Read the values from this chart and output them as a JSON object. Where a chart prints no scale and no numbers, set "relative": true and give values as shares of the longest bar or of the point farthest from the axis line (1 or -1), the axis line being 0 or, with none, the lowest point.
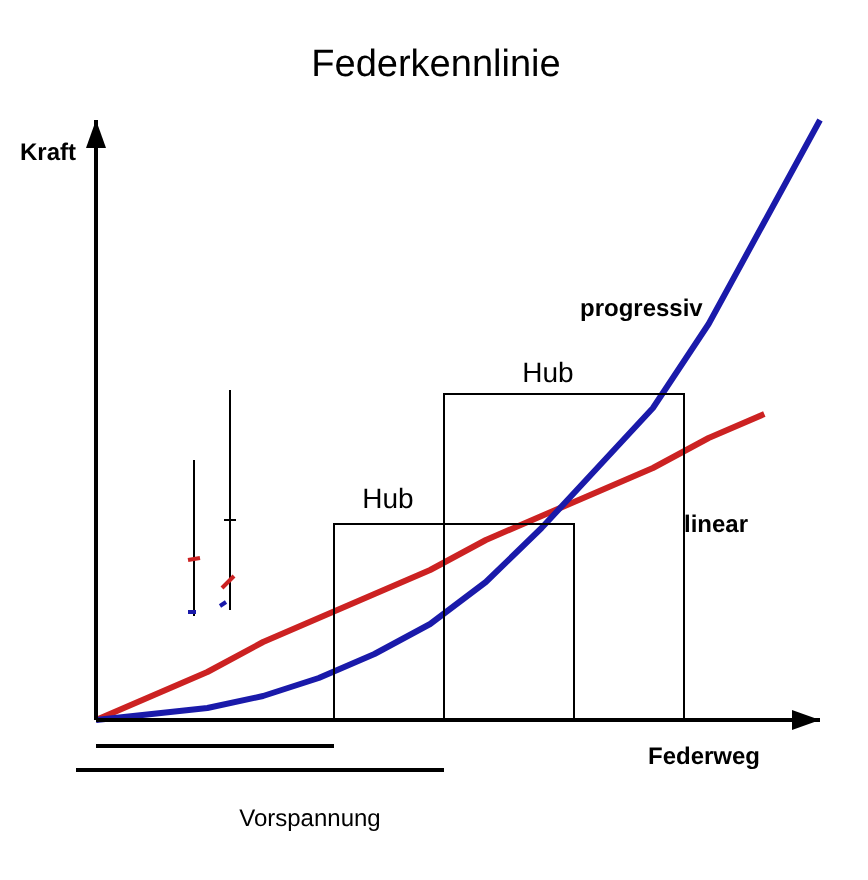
{
  "chart_data": {
    "type": "line",
    "title": "Federkennlinie",
    "xlabel": "Federweg",
    "ylabel": "Kraft",
    "relative": true,
    "legend": false,
    "marker": "none",
    "line_style": "solid",
    "grid": false,
    "categories": [
      null,
      null,
      null,
      null,
      null,
      null,
      null,
      null,
      null,
      null,
      null,
      null,
      null,
      null
    ],
    "series": [
      {
        "name": "linear",
        "color": "#cc2222",
        "values": [
          0,
          0.04,
          0.08,
          0.13,
          0.17,
          0.21,
          0.25,
          0.3,
          0.34,
          0.38,
          0.42,
          0.47,
          0.51,
          null
        ]
      },
      {
        "name": "progressiv",
        "color": "#1a1aaa",
        "values": [
          0,
          0.01,
          0.02,
          0.04,
          0.07,
          0.11,
          0.16,
          0.23,
          0.32,
          0.42,
          0.52,
          0.66,
          0.83,
          1
        ]
      }
    ],
    "annotations": [
      "Hub",
      "Hub",
      "Vorspannung"
    ]
  }
}
